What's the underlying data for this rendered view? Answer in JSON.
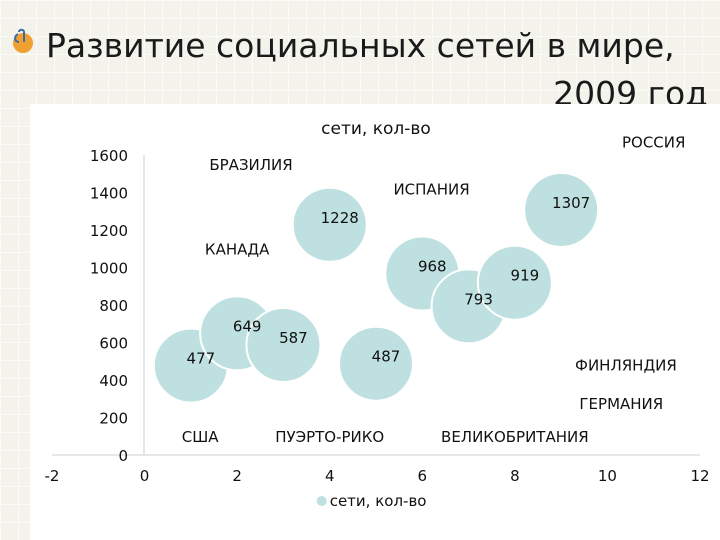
{
  "slide": {
    "title_line1": "Развитие социальных сетей в мире,",
    "title_line2": "2009 год"
  },
  "colors": {
    "bubble_fill": "#bfe0e0",
    "bubble_stroke": "#ffffff",
    "background": "#f3f3ec"
  },
  "chart_data": {
    "type": "bubble",
    "title": "сети, кол-во",
    "legend": {
      "label": "сети, кол-во",
      "position": "bottom"
    },
    "xlim": [
      -2,
      12
    ],
    "ylim": [
      0,
      1600
    ],
    "x_ticks": [
      "-2",
      "0",
      "2",
      "4",
      "6",
      "8",
      "10",
      "12"
    ],
    "y_ticks": [
      "0",
      "200",
      "400",
      "600",
      "800",
      "1000",
      "1200",
      "1400",
      "1600"
    ],
    "grid": false,
    "series": [
      {
        "name": "сети, кол-во",
        "points": [
          {
            "x": 1,
            "y": 477,
            "label": "477"
          },
          {
            "x": 2,
            "y": 649,
            "label": "649"
          },
          {
            "x": 3,
            "y": 587,
            "label": "587"
          },
          {
            "x": 5,
            "y": 487,
            "label": "487"
          },
          {
            "x": 4,
            "y": 1228,
            "label": "1228"
          },
          {
            "x": 6,
            "y": 968,
            "label": "968"
          },
          {
            "x": 7,
            "y": 793,
            "label": "793"
          },
          {
            "x": 8,
            "y": 919,
            "label": "919"
          },
          {
            "x": 9,
            "y": 1307,
            "label": "1307"
          }
        ]
      }
    ],
    "annotations": [
      {
        "text": "БРАЗИЛИЯ",
        "x": 2.3,
        "y": 1520
      },
      {
        "text": "ИСПАНИЯ",
        "x": 6.2,
        "y": 1390
      },
      {
        "text": "РОССИЯ",
        "x": 11,
        "y": 1640
      },
      {
        "text": "КАНАДА",
        "x": 2.0,
        "y": 1070
      },
      {
        "text": "ФИНЛЯНДИЯ",
        "x": 10.4,
        "y": 450
      },
      {
        "text": "ГЕРМАНИЯ",
        "x": 10.3,
        "y": 245
      },
      {
        "text": "США",
        "x": 1.2,
        "y": 70
      },
      {
        "text": "ПУЭРТО-РИКО",
        "x": 4.0,
        "y": 70
      },
      {
        "text": "ВЕЛИКОБРИТАНИЯ",
        "x": 8.0,
        "y": 70
      }
    ]
  }
}
